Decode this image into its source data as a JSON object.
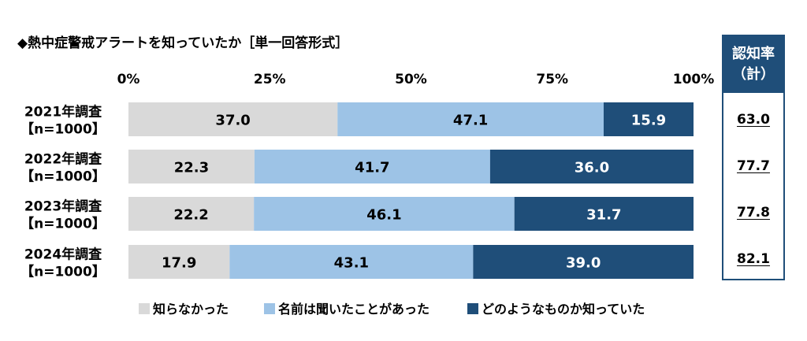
{
  "page": {
    "title": "◆熱中症警戒アラートを知っていたか［単一回答形式］",
    "side_header_line1": "認知率",
    "side_header_line2": "（計）",
    "side_values": [
      "63.0",
      "77.7",
      "77.8",
      "82.1"
    ]
  },
  "colors": {
    "not_known": "#d9d9d9",
    "heard_name": "#9dc3e6",
    "knew_content": "#1f4e79",
    "side_border": "#1f4e79"
  },
  "chart_data": {
    "type": "bar",
    "orientation": "horizontal",
    "stacked": true,
    "percent": true,
    "categories": [
      [
        "2021年調査",
        "【n=1000】"
      ],
      [
        "2022年調査",
        "【n=1000】"
      ],
      [
        "2023年調査",
        "【n=1000】"
      ],
      [
        "2024年調査",
        "【n=1000】"
      ]
    ],
    "xticks": [
      "0%",
      "25%",
      "50%",
      "75%",
      "100%"
    ],
    "xlim": [
      0,
      100
    ],
    "legend_position": "bottom",
    "series": [
      {
        "name": "知らなかった",
        "values": [
          37.0,
          22.3,
          22.2,
          17.9
        ],
        "color": "#d9d9d9",
        "label_color": "#000000"
      },
      {
        "name": "名前は聞いたことがあった",
        "values": [
          47.1,
          41.7,
          46.1,
          43.1
        ],
        "color": "#9dc3e6",
        "label_color": "#000000"
      },
      {
        "name": "どのようなものか知っていた",
        "values": [
          15.9,
          36.0,
          31.7,
          39.0
        ],
        "color": "#1f4e79",
        "label_color": "#ffffff"
      }
    ]
  }
}
